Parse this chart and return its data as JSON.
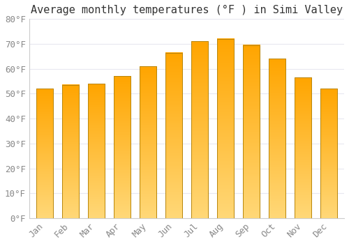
{
  "title": "Average monthly temperatures (°F ) in Simi Valley",
  "months": [
    "Jan",
    "Feb",
    "Mar",
    "Apr",
    "May",
    "Jun",
    "Jul",
    "Aug",
    "Sep",
    "Oct",
    "Nov",
    "Dec"
  ],
  "values": [
    52,
    53.5,
    54,
    57,
    61,
    66.5,
    71,
    72,
    69.5,
    64,
    56.5,
    52
  ],
  "bar_color_top": "#FFA500",
  "bar_color_bottom": "#FFD878",
  "bar_edge_color": "#B8860B",
  "ylim": [
    0,
    80
  ],
  "yticks": [
    0,
    10,
    20,
    30,
    40,
    50,
    60,
    70,
    80
  ],
  "ytick_labels": [
    "0°F",
    "10°F",
    "20°F",
    "30°F",
    "40°F",
    "50°F",
    "60°F",
    "70°F",
    "80°F"
  ],
  "background_color": "#ffffff",
  "plot_bg_color": "#ffffff",
  "grid_color": "#e8e8f0",
  "title_fontsize": 11,
  "tick_fontsize": 9,
  "font_color": "#888888",
  "title_color": "#333333",
  "bar_width": 0.65
}
